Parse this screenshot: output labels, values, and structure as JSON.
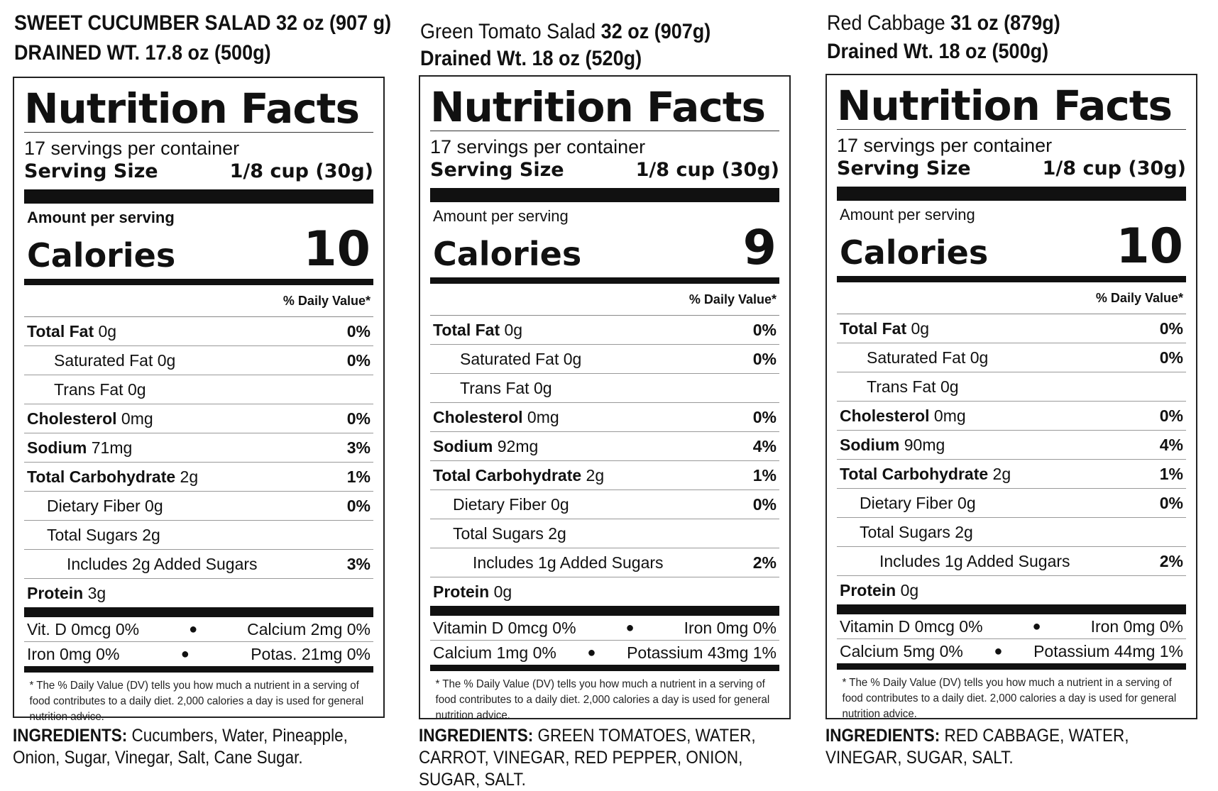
{
  "labels": [
    {
      "product_name": "SWEET CUCUMBER SALAD",
      "net_weight": "32 oz (907 g)",
      "drained_label": "DRAINED WT.",
      "drained_weight": "17.8 oz (500g)",
      "nf_title": "Nutrition Facts",
      "servings": "17 servings per container",
      "serving_size_label": "Serving Size",
      "serving_size_value": "1/8 cup (30g)",
      "amount_per_serving": "Amount per serving",
      "calories_label": "Calories",
      "calories_value": "10",
      "dv_header": "% Daily Value*",
      "nutrients": [
        {
          "name": "Total Fat",
          "amount": "0g",
          "dv": "0%"
        },
        {
          "name": "Saturated Fat",
          "amount": "0g",
          "dv": "0%"
        },
        {
          "name": "Trans Fat",
          "amount": "0g",
          "dv": ""
        },
        {
          "name": "Cholesterol",
          "amount": "0mg",
          "dv": "0%"
        },
        {
          "name": "Sodium",
          "amount": "71mg",
          "dv": "3%"
        },
        {
          "name": "Total Carbohydrate",
          "amount": "2g",
          "dv": "1%"
        },
        {
          "name": "Dietary Fiber",
          "amount": "0g",
          "dv": "0%"
        },
        {
          "name": "Total Sugars",
          "amount": "2g",
          "dv": ""
        },
        {
          "name": "Includes 2g Added Sugars",
          "amount": "",
          "dv": "3%"
        },
        {
          "name": "Protein",
          "amount": "3g",
          "dv": ""
        }
      ],
      "vitamins": [
        {
          "left": "Vit. D 0mcg 0%",
          "right": "Calcium 2mg 0%"
        },
        {
          "left": "Iron 0mg 0%",
          "right": "Potas. 21mg 0%"
        }
      ],
      "footnote": "* The % Daily Value (DV) tells you how much a nutrient in a serving of food contributes to a daily diet. 2,000 calories a day is used for general nutrition advice.",
      "ingredients_label": "INGREDIENTS:",
      "ingredients": "Cucumbers, Water, Pineapple, Onion, Sugar, Vinegar, Salt, Cane Sugar."
    },
    {
      "product_name": "Green Tomato Salad",
      "net_weight": "32 oz (907g)",
      "drained_label": "Drained Wt.",
      "drained_weight": "18 oz (520g)",
      "nf_title": "Nutrition Facts",
      "servings": "17 servings per container",
      "serving_size_label": "Serving Size",
      "serving_size_value": "1/8 cup (30g)",
      "amount_per_serving": "Amount per serving",
      "calories_label": "Calories",
      "calories_value": "9",
      "dv_header": "% Daily Value*",
      "nutrients": [
        {
          "name": "Total Fat",
          "amount": "0g",
          "dv": "0%"
        },
        {
          "name": "Saturated Fat",
          "amount": "0g",
          "dv": "0%"
        },
        {
          "name": "Trans Fat",
          "amount": "0g",
          "dv": ""
        },
        {
          "name": "Cholesterol",
          "amount": "0mg",
          "dv": "0%"
        },
        {
          "name": "Sodium",
          "amount": "92mg",
          "dv": "4%"
        },
        {
          "name": "Total Carbohydrate",
          "amount": "2g",
          "dv": "1%"
        },
        {
          "name": "Dietary Fiber",
          "amount": "0g",
          "dv": "0%"
        },
        {
          "name": "Total Sugars",
          "amount": "2g",
          "dv": ""
        },
        {
          "name": "Includes 1g Added Sugars",
          "amount": "",
          "dv": "2%"
        },
        {
          "name": "Protein",
          "amount": "0g",
          "dv": ""
        }
      ],
      "vitamins": [
        {
          "left": "Vitamin D 0mcg 0%",
          "right": "Iron 0mg 0%"
        },
        {
          "left": "Calcium 1mg 0%",
          "right": "Potassium 43mg 1%"
        }
      ],
      "footnote": "* The % Daily Value (DV) tells you how much a nutrient in a serving of food contributes to a daily diet. 2,000 calories a day is used for general nutrition advice.",
      "ingredients_label": "INGREDIENTS:",
      "ingredients": "GREEN TOMATOES, WATER, CARROT, VINEGAR, RED PEPPER, ONION, SUGAR, SALT."
    },
    {
      "product_name": "Red Cabbage",
      "net_weight": "31 oz (879g)",
      "drained_label": "Drained Wt.",
      "drained_weight": "18 oz (500g)",
      "nf_title": "Nutrition Facts",
      "servings": "17 servings per container",
      "serving_size_label": "Serving Size",
      "serving_size_value": "1/8 cup (30g)",
      "amount_per_serving": "Amount per serving",
      "calories_label": "Calories",
      "calories_value": "10",
      "dv_header": "% Daily Value*",
      "nutrients": [
        {
          "name": "Total Fat",
          "amount": "0g",
          "dv": "0%"
        },
        {
          "name": "Saturated Fat",
          "amount": "0g",
          "dv": "0%"
        },
        {
          "name": "Trans Fat",
          "amount": "0g",
          "dv": ""
        },
        {
          "name": "Cholesterol",
          "amount": "0mg",
          "dv": "0%"
        },
        {
          "name": "Sodium",
          "amount": "90mg",
          "dv": "4%"
        },
        {
          "name": "Total Carbohydrate",
          "amount": "2g",
          "dv": "1%"
        },
        {
          "name": "Dietary Fiber",
          "amount": "0g",
          "dv": "0%"
        },
        {
          "name": "Total Sugars",
          "amount": "2g",
          "dv": ""
        },
        {
          "name": "Includes 1g Added Sugars",
          "amount": "",
          "dv": "2%"
        },
        {
          "name": "Protein",
          "amount": "0g",
          "dv": ""
        }
      ],
      "vitamins": [
        {
          "left": "Vitamin D 0mcg 0%",
          "right": "Iron 0mg 0%"
        },
        {
          "left": "Calcium 5mg 0%",
          "right": "Potassium 44mg 1%"
        }
      ],
      "footnote": "* The % Daily Value (DV) tells you how much a nutrient in a serving of food contributes to a daily diet. 2,000 calories a day is used for general nutrition advice.",
      "ingredients_label": "INGREDIENTS:",
      "ingredients": "RED CABBAGE, WATER, VINEGAR, SUGAR, SALT."
    }
  ]
}
